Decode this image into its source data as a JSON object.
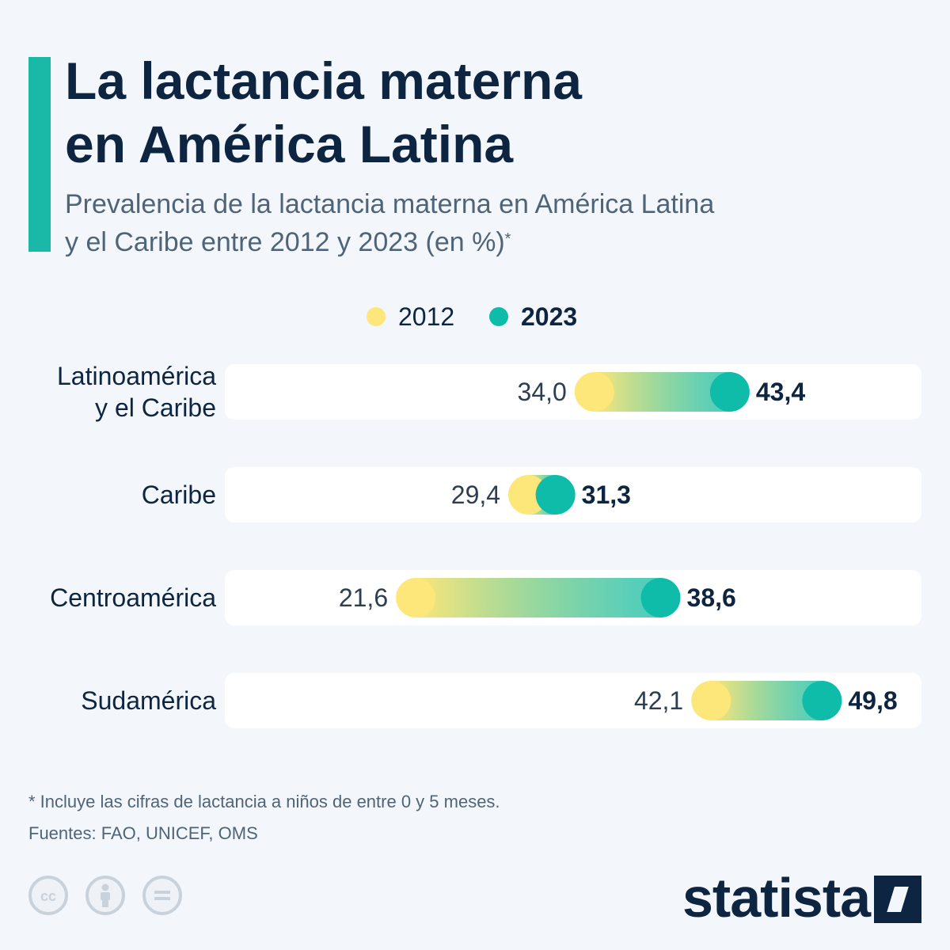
{
  "title_lines": [
    "La lactancia materna",
    "en América Latina"
  ],
  "subtitle_lines": [
    "Prevalencia de la lactancia materna en América Latina",
    "y el Caribe entre 2012 y 2023 (en %)"
  ],
  "subtitle_marker": "*",
  "colors": {
    "accent": "#1ab9a7",
    "series_2012": "#fde67a",
    "series_2023": "#0fbcaa",
    "row_bg": "#ffffff",
    "text_dark": "#0d2540",
    "text_muted": "#4f6478"
  },
  "chart_data": {
    "type": "dumbbell",
    "title": "La lactancia materna en América Latina",
    "subtitle": "Prevalencia de la lactancia materna en América Latina y el Caribe entre 2012 y 2023 (en %)*",
    "legend": {
      "placement": "top-center"
    },
    "categories": [
      "Latinoamérica\ny el Caribe",
      "Caribe",
      "Centroamérica",
      "Sudamérica"
    ],
    "series": [
      {
        "name": "2012",
        "values": [
          34.0,
          29.4,
          21.6,
          42.1
        ],
        "labels": [
          "34,0",
          "29,4",
          "21,6",
          "42,1"
        ]
      },
      {
        "name": "2023",
        "values": [
          43.4,
          31.3,
          38.6,
          49.8
        ],
        "labels": [
          "43,4",
          "31,3",
          "38,6",
          "49,8"
        ]
      }
    ],
    "unit": "%",
    "grid": false
  },
  "footnote": "* Incluye las cifras de lactancia a niños de entre 0 y 5 meses.",
  "sources": "Fuentes: FAO, UNICEF, OMS",
  "license_icons": [
    "cc-icon",
    "attribution-icon",
    "no-derivatives-icon"
  ],
  "brand": "statista"
}
